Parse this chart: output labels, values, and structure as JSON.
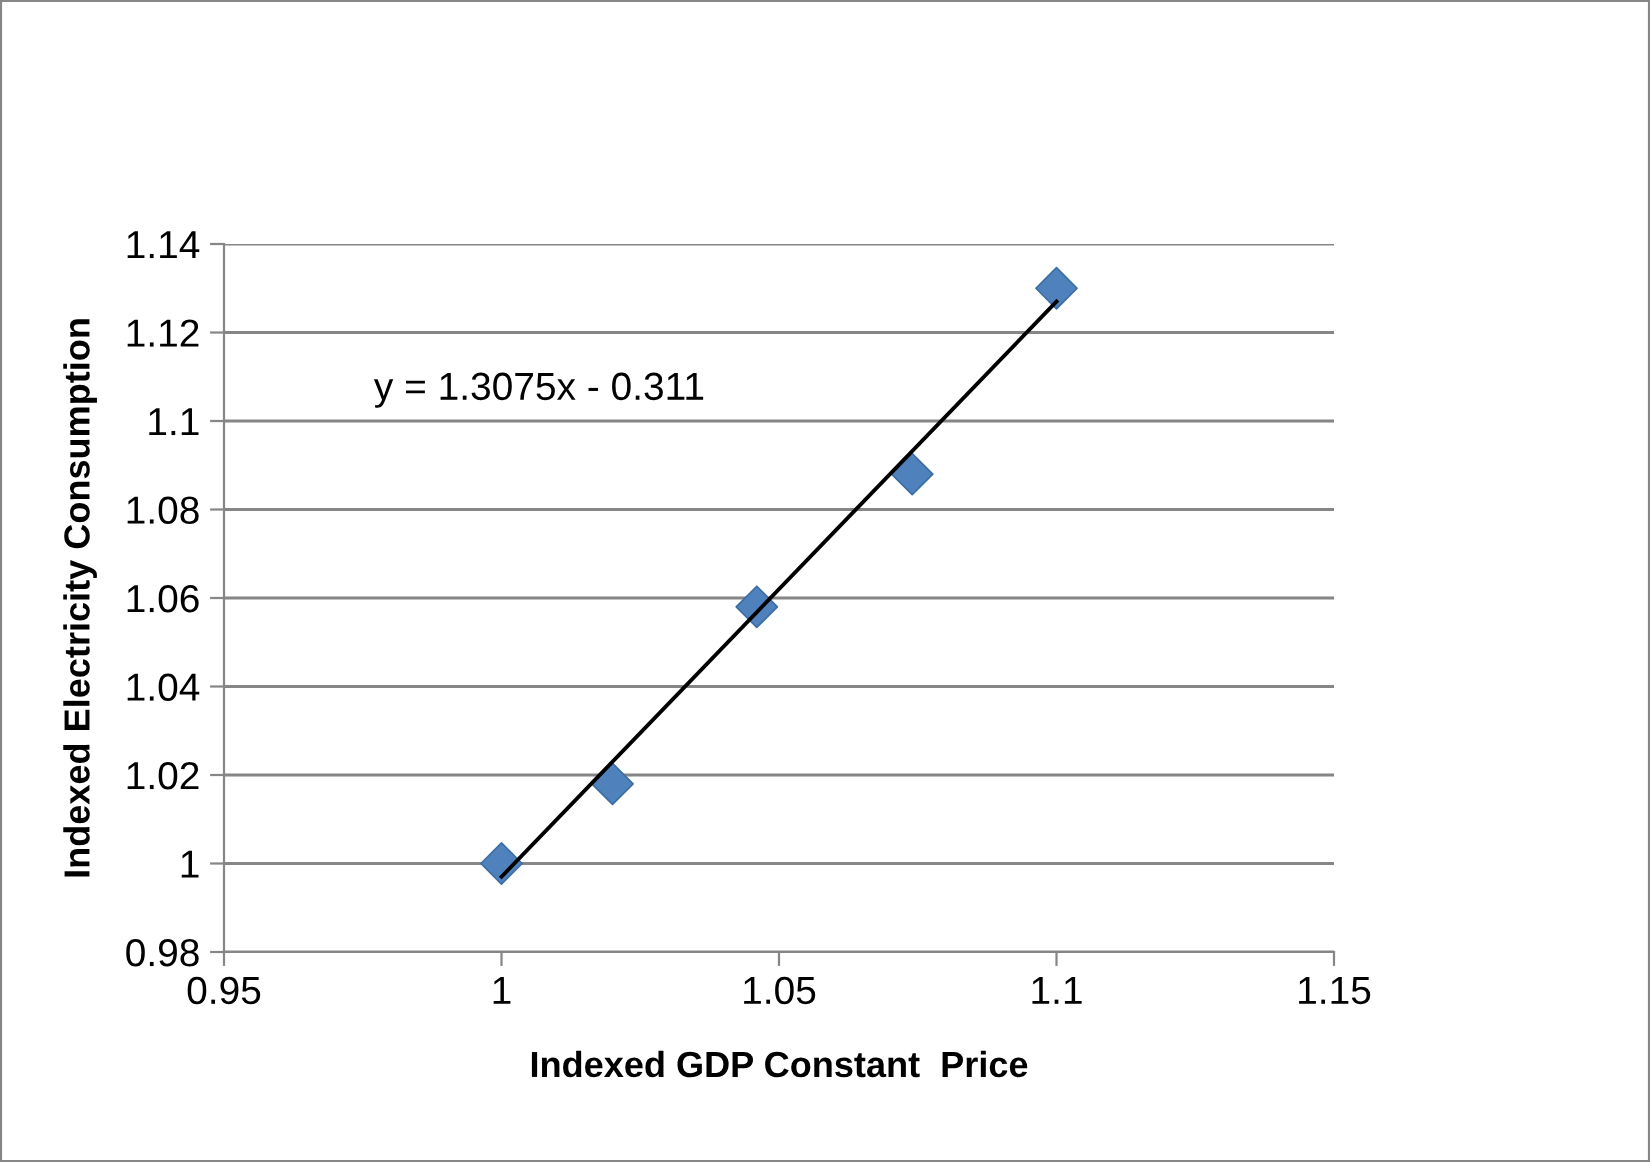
{
  "chart_data": {
    "type": "scatter",
    "xlabel": "Indexed GDP Constant  Price",
    "ylabel": "Indexed Electricity Consumption",
    "series": [
      {
        "color": "#4f81bd",
        "marker": "diamond",
        "x": [
          1,
          1.02,
          1.046,
          1.074,
          1.1
        ],
        "values": [
          1.0,
          1.018,
          1.058,
          1.088,
          1.13
        ]
      },
      {
        "type": "line",
        "color": "#000000",
        "marker": "none",
        "line_style": "solid",
        "x": [
          1,
          1.1
        ],
        "values": [
          0.997,
          1.127
        ]
      }
    ],
    "annotations": [
      "y = 1.3075x - 0.311"
    ],
    "xlim": [
      0.95,
      1.15
    ],
    "xticks": [
      0.95,
      1,
      1.05,
      1.1,
      1.15
    ],
    "ylim": [
      0.98,
      1.14
    ],
    "yticks": [
      0.98,
      1,
      1.02,
      1.04,
      1.06,
      1.08,
      1.1,
      1.12,
      1.14
    ],
    "grid": "y",
    "legend": false
  }
}
